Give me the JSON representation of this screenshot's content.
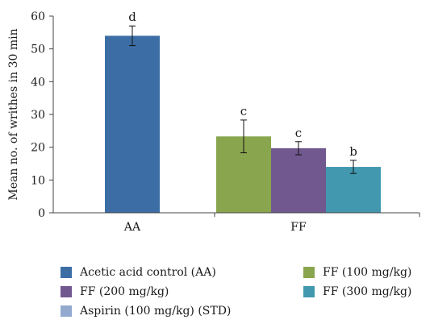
{
  "chart_data": {
    "type": "bar",
    "ylabel": "Mean no. of writhes in 30 min",
    "xlabel": "",
    "ylim": [
      0,
      60
    ],
    "yticks": [
      0,
      10,
      20,
      30,
      40,
      50,
      60
    ],
    "grid": false,
    "legend_position": "bottom",
    "groups": [
      "AA",
      "FF"
    ],
    "series": [
      {
        "name": "Acetic acid control (AA)",
        "group": "AA",
        "value": 54,
        "error": 3,
        "sig": "d",
        "color": "#3C6EA5"
      },
      {
        "name": "FF (100 mg/kg)",
        "group": "FF",
        "value": 23.3,
        "error": 5,
        "sig": "c",
        "color": "#89A54E"
      },
      {
        "name": "FF (200 mg/kg)",
        "group": "FF",
        "value": 19.7,
        "error": 2,
        "sig": "c",
        "color": "#71588F"
      },
      {
        "name": "FF (300 mg/kg)",
        "group": "FF",
        "value": 14,
        "error": 2,
        "sig": "b",
        "color": "#4198AF"
      },
      {
        "name": "Aspirin (100 mg/kg) (STD)",
        "group": "",
        "value": null,
        "error": null,
        "sig": "",
        "color": "#93A9CF"
      }
    ]
  }
}
